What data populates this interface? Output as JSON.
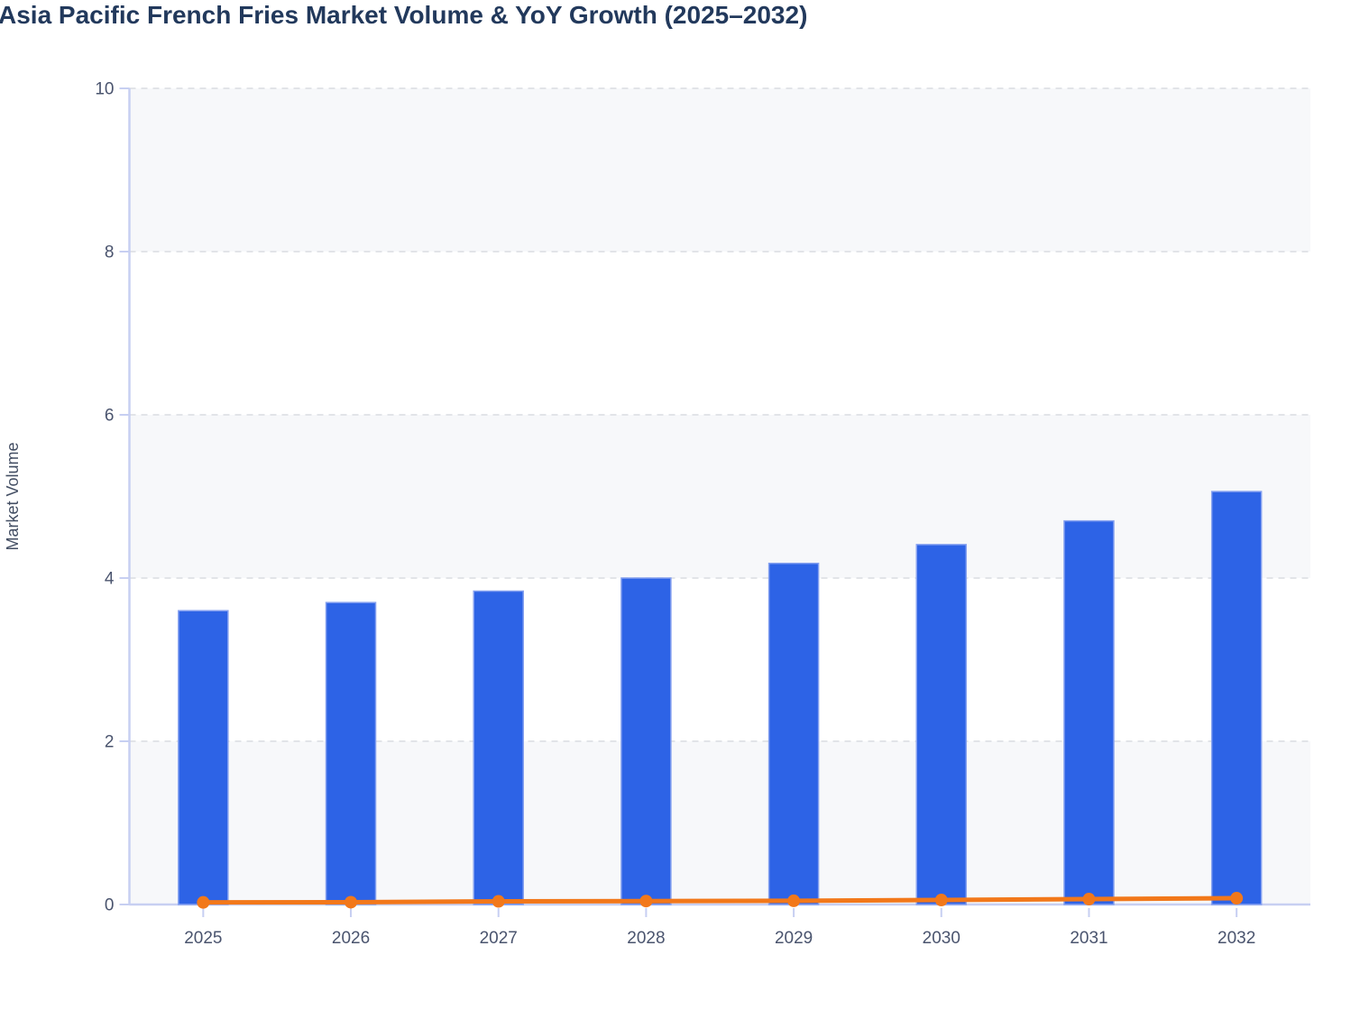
{
  "header": {
    "title": "Asia Pacific French Fries Market Volume & YoY Growth (2025–2032)",
    "title_color": "#22395c"
  },
  "chart_data": {
    "type": "bar",
    "subtype": "bar-line-combo",
    "title": "Asia Pacific French Fries Market Volume & YoY Growth (2025–2032)",
    "categories": [
      "2025",
      "2026",
      "2027",
      "2028",
      "2029",
      "2030",
      "2031",
      "2032"
    ],
    "series": [
      {
        "name": "Market Volume",
        "type": "bar",
        "color": "#2d63e6",
        "border_color": "#84a0f0",
        "values": [
          3.6,
          3.7,
          3.84,
          4.0,
          4.18,
          4.41,
          4.7,
          5.06
        ]
      },
      {
        "name": "YoY Growth",
        "type": "line",
        "color": "#f2781a",
        "values_percent": [
          2.6,
          2.8,
          3.8,
          4.2,
          4.5,
          5.5,
          6.6,
          7.7
        ],
        "plotted_as": "fraction of 1 on the Market Volume axis"
      }
    ],
    "xlabel": "",
    "ylabel": "Market Volume",
    "ylim": [
      0,
      10
    ],
    "yticks": [
      0,
      2,
      4,
      6,
      8,
      10
    ],
    "grid": "horizontal dashed",
    "legend": "none",
    "styles": {
      "band_fill": "#f7f8fa",
      "grid_color": "#e2e4e8",
      "axis_color": "#c7cff2",
      "tick_label_color": "#4a546e",
      "axis_title_color": "#434e63"
    }
  }
}
